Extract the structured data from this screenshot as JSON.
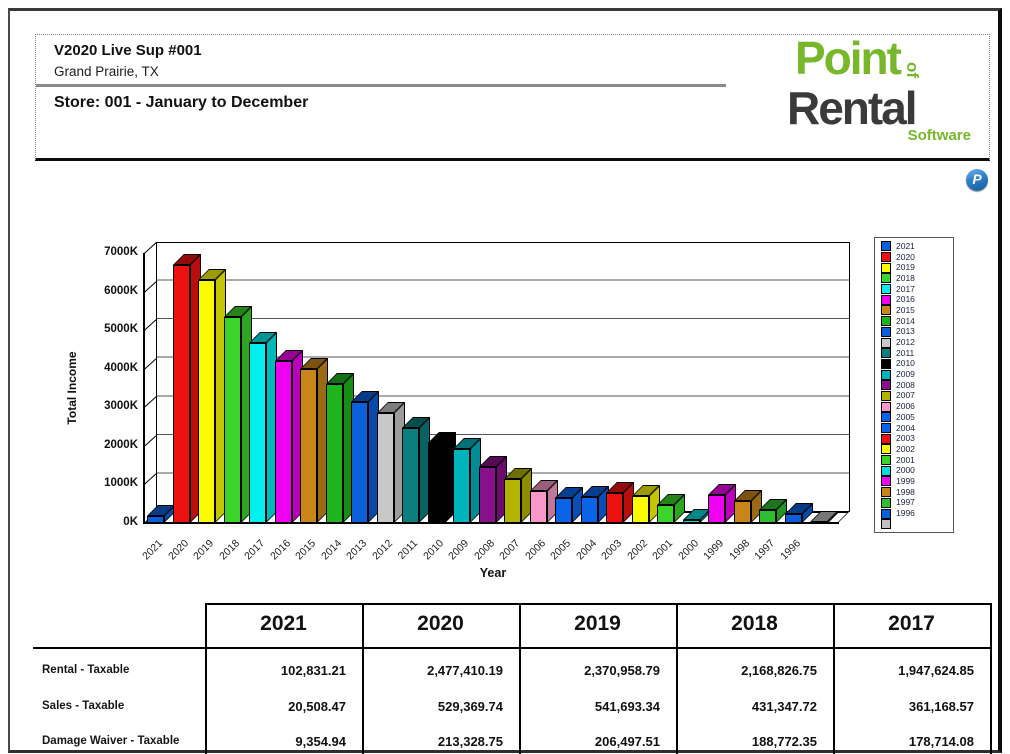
{
  "header": {
    "title": "V2020 Live Sup #001",
    "city": "Grand Prairie, TX",
    "store_line": "Store: 001 - January to December"
  },
  "logo": {
    "point": "Point",
    "of": "of",
    "rental": "Rental",
    "software": "Software",
    "green": "#76B82A",
    "dark": "#3A3A3A"
  },
  "badge": {
    "letter": "P",
    "color": "#2E7FC8"
  },
  "chart_data": {
    "type": "bar",
    "title": "",
    "xlabel": "Year",
    "ylabel": "Total Income",
    "unit": "K (thousands)",
    "ylim": [
      0,
      7000
    ],
    "ytick_labels": [
      "0K",
      "1000K",
      "2000K",
      "3000K",
      "4000K",
      "5000K",
      "6000K",
      "7000K"
    ],
    "grid": true,
    "legend_position": "right",
    "categories": [
      "2021",
      "2020",
      "2019",
      "2018",
      "2017",
      "2016",
      "2015",
      "2014",
      "2013",
      "2012",
      "2011",
      "2010",
      "2009",
      "2008",
      "2007",
      "2006",
      "2005",
      "2004",
      "2003",
      "2002",
      "2001",
      "2000",
      "1999",
      "1998",
      "1997",
      "1996",
      ""
    ],
    "values": [
      185,
      6680,
      6300,
      5350,
      4670,
      4200,
      4000,
      3600,
      3150,
      2850,
      2450,
      2070,
      1930,
      1450,
      1150,
      830,
      650,
      670,
      780,
      690,
      460,
      85,
      730,
      560,
      340,
      230,
      20
    ],
    "colors": [
      "#0B5FD9",
      "#EE1111",
      "#FBFB00",
      "#3BD42A",
      "#00EFEF",
      "#F000F0",
      "#C8861A",
      "#1EB41E",
      "#0B5FD9",
      "#C8C8C8",
      "#0B7E7E",
      "#000000",
      "#00B4BE",
      "#8A0F8A",
      "#B4B400",
      "#F898C8",
      "#0A64E8",
      "#0A64E8",
      "#EE1111",
      "#FBFB00",
      "#3BD42A",
      "#00DCDC",
      "#F000F0",
      "#C8861A",
      "#2FBE2F",
      "#0B5FD9",
      "#C0C0C0"
    ]
  },
  "table": {
    "columns": [
      "2021",
      "2020",
      "2019",
      "2018",
      "2017"
    ],
    "rows": [
      {
        "label": "Rental - Taxable",
        "values": [
          "102,831.21",
          "2,477,410.19",
          "2,370,958.79",
          "2,168,826.75",
          "1,947,624.85"
        ]
      },
      {
        "label": "Sales - Taxable",
        "values": [
          "20,508.47",
          "529,369.74",
          "541,693.34",
          "431,347.72",
          "361,168.57"
        ]
      },
      {
        "label": "Damage Waiver - Taxable",
        "values": [
          "9,354.94",
          "213,328.75",
          "206,497.51",
          "188,772.35",
          "178,714.08"
        ]
      }
    ]
  }
}
